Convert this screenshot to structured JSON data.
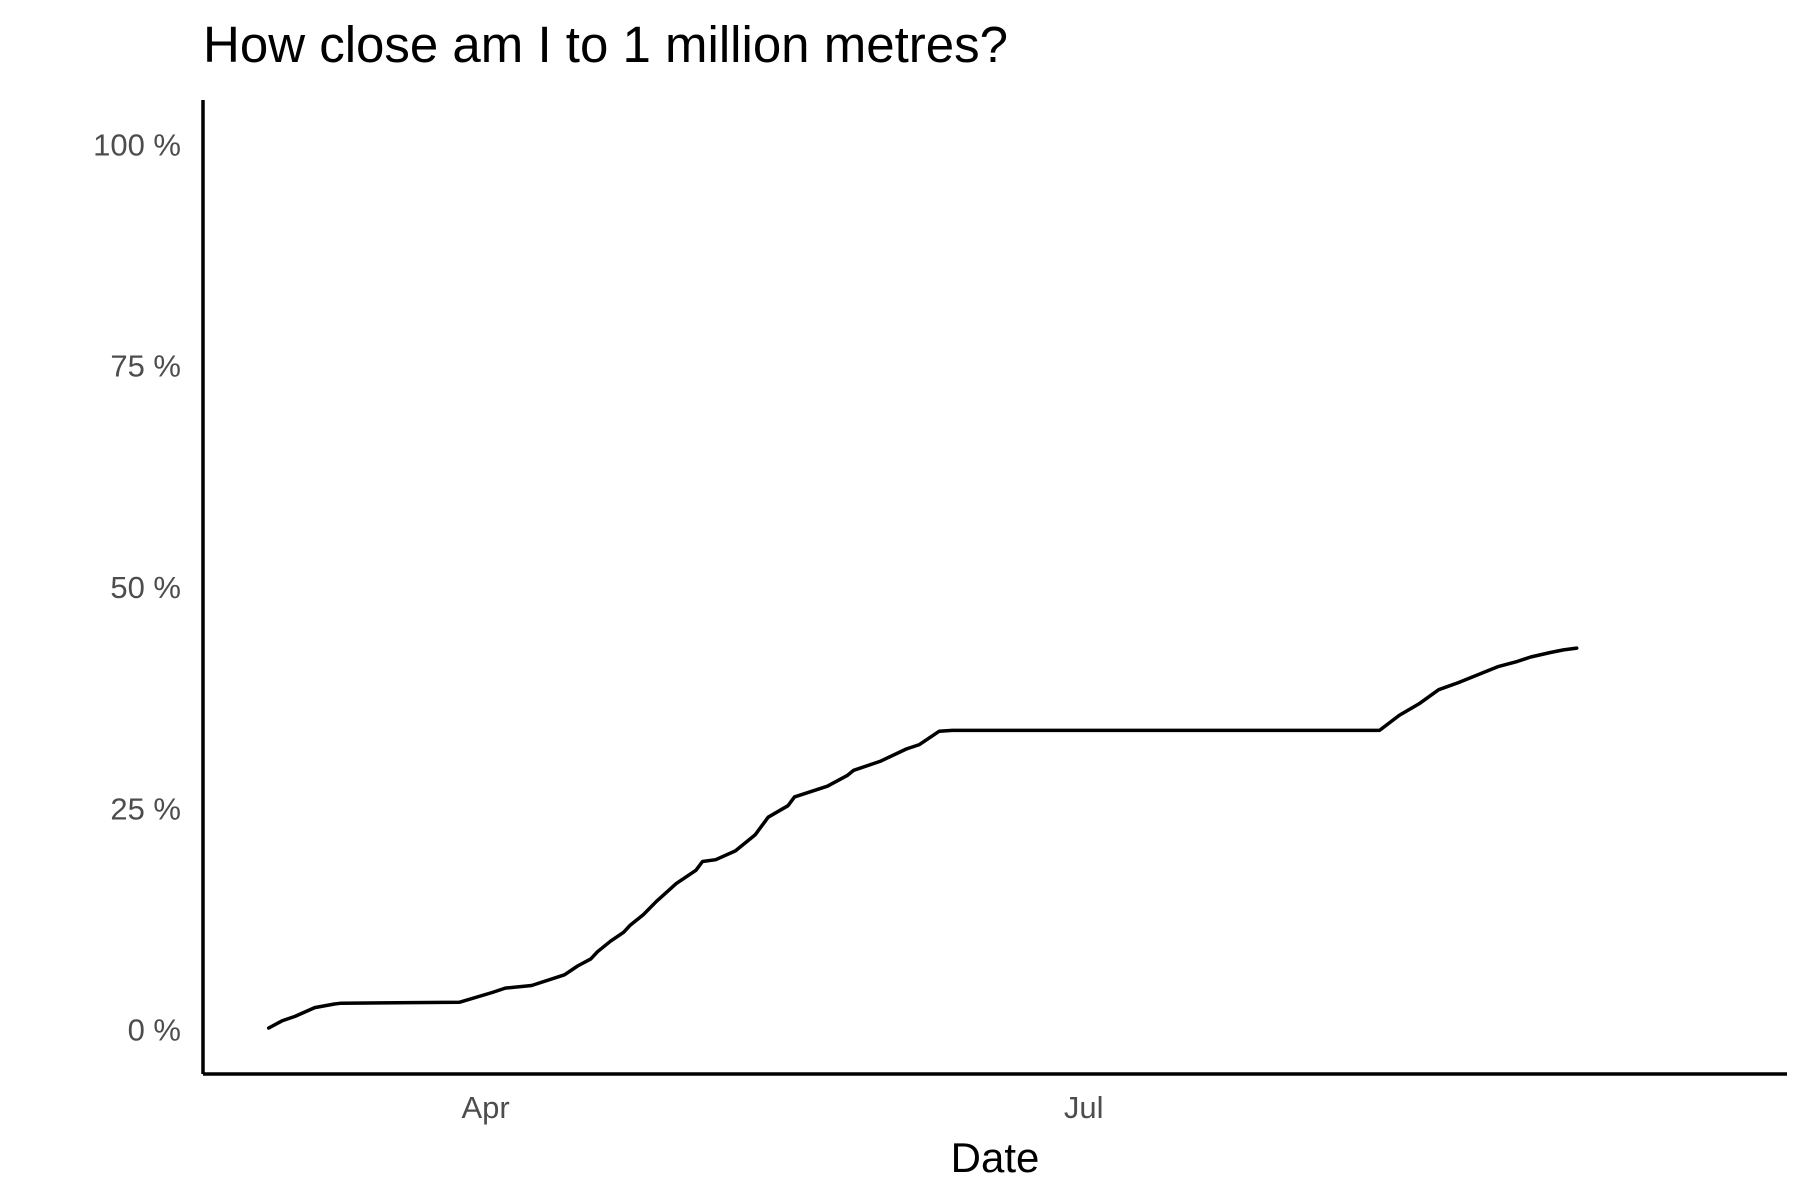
{
  "chart_data": {
    "type": "line",
    "title": "How close am I to 1 million metres?",
    "xlabel": "Date",
    "ylabel": "",
    "x_ticks": [
      {
        "date": "2023-04-01",
        "label": "Apr"
      },
      {
        "date": "2023-07-01",
        "label": "Jul"
      }
    ],
    "xlim": [
      "2023-02-17",
      "2023-10-16"
    ],
    "y_ticks": [
      {
        "value": 0,
        "label": "0 %"
      },
      {
        "value": 25,
        "label": "25 %"
      },
      {
        "value": 50,
        "label": "50 %"
      },
      {
        "value": 75,
        "label": "75 %"
      },
      {
        "value": 100,
        "label": "100 %"
      }
    ],
    "ylim": [
      -5,
      105
    ],
    "grid": false,
    "legend": "none",
    "colors": {
      "line": "#000000",
      "axis": "#000000",
      "tick_text": "#4d4d4d"
    },
    "series": [
      {
        "x": [
          "2023-02-27",
          "2023-03-01",
          "2023-03-03",
          "2023-03-06",
          "2023-03-09",
          "2023-03-10",
          "2023-03-28",
          "2023-04-02",
          "2023-04-04",
          "2023-04-08",
          "2023-04-13",
          "2023-04-15",
          "2023-04-17",
          "2023-04-18",
          "2023-04-20",
          "2023-04-22",
          "2023-04-23",
          "2023-04-25",
          "2023-04-27",
          "2023-04-30",
          "2023-05-03",
          "2023-05-04",
          "2023-05-06",
          "2023-05-09",
          "2023-05-12",
          "2023-05-14",
          "2023-05-17",
          "2023-05-18",
          "2023-05-23",
          "2023-05-26",
          "2023-05-27",
          "2023-05-31",
          "2023-06-04",
          "2023-06-06",
          "2023-06-09",
          "2023-06-11",
          "2023-06-13",
          "2023-06-15",
          "2023-06-17",
          "2023-06-20",
          "2023-06-22",
          "2023-06-25",
          "2023-06-30",
          "2023-07-02",
          "2023-08-15",
          "2023-08-18",
          "2023-08-21",
          "2023-08-24",
          "2023-08-27",
          "2023-08-31",
          "2023-09-02",
          "2023-09-05",
          "2023-09-07",
          "2023-09-10",
          "2023-09-12",
          "2023-09-14"
        ],
        "values": [
          0.2,
          1.0,
          1.5,
          2.5,
          2.9,
          3.0,
          3.1,
          4.2,
          4.7,
          5.0,
          6.2,
          7.2,
          8.0,
          8.8,
          10.0,
          11.0,
          11.8,
          13.0,
          14.5,
          16.5,
          18.0,
          19.0,
          19.2,
          20.2,
          22.0,
          24.0,
          25.3,
          26.3,
          27.5,
          28.7,
          29.3,
          30.3,
          31.7,
          32.2,
          33.7,
          33.8,
          33.8,
          33.8,
          33.8,
          33.8,
          33.8,
          33.8,
          33.8,
          33.8,
          33.8,
          35.5,
          36.8,
          38.4,
          39.2,
          40.4,
          41.0,
          41.6,
          42.1,
          42.6,
          42.9,
          43.1
        ],
        "color": "#000000"
      }
    ]
  }
}
